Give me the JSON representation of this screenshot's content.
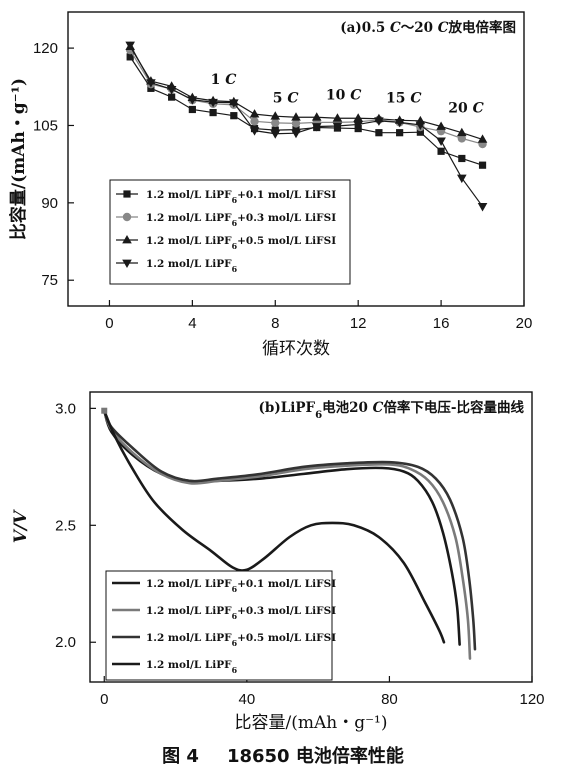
{
  "caption": {
    "figure_no": "图 4",
    "text": "18650 电池倍率性能"
  },
  "chart_data": [
    {
      "type": "line",
      "title": "(a)0.5 C～20 C放电倍率图",
      "xlabel": "循环次数",
      "ylabel": "比容量/(mAh・g⁻¹)",
      "xlim": [
        -2,
        20
      ],
      "ylim": [
        70,
        127
      ],
      "xticks": [
        0,
        4,
        8,
        12,
        16,
        20
      ],
      "yticks": [
        75,
        90,
        105,
        120
      ],
      "grid": false,
      "legend_placement": "lower-left",
      "annotations": [
        {
          "text": "1 C",
          "x": 5.5,
          "y": 113
        },
        {
          "text": "5 C",
          "x": 8.5,
          "y": 109.5
        },
        {
          "text": "10 C",
          "x": 11.3,
          "y": 110
        },
        {
          "text": "15 C",
          "x": 14.2,
          "y": 109.5
        },
        {
          "text": "20 C",
          "x": 17.2,
          "y": 107.5
        }
      ],
      "x": [
        1,
        2,
        3,
        4,
        5,
        6,
        7,
        8,
        9,
        10,
        11,
        12,
        13,
        14,
        15,
        16,
        17,
        18
      ],
      "series": [
        {
          "name": "1.2 mol/L LiPF₆+0.1 mol/L LiFSI",
          "marker": "square",
          "color": "#1a1a1a",
          "values": [
            118.3,
            112.2,
            110.5,
            108.1,
            107.5,
            106.9,
            104.4,
            104.1,
            104.2,
            104.6,
            104.5,
            104.4,
            103.6,
            103.6,
            103.7,
            100.0,
            98.6,
            97.3
          ]
        },
        {
          "name": "1.2 mol/L LiPF₆+0.3 mol/L LiFSI",
          "marker": "circle",
          "color": "#888888",
          "values": [
            119.6,
            113.0,
            112.1,
            109.9,
            109.2,
            109.0,
            105.8,
            105.5,
            105.4,
            105.6,
            105.6,
            105.7,
            106.1,
            105.6,
            104.7,
            103.9,
            102.5,
            101.4
          ]
        },
        {
          "name": "1.2 mol/L LiPF₆+0.5 mol/L LiFSI",
          "marker": "triangle-up",
          "color": "#1a1a1a",
          "values": [
            120.3,
            113.6,
            112.6,
            110.4,
            109.8,
            109.6,
            107.2,
            106.8,
            106.6,
            106.6,
            106.4,
            106.4,
            106.3,
            106.0,
            105.9,
            104.8,
            103.6,
            102.3
          ]
        },
        {
          "name": "1.2 mol/L LiPF₆",
          "marker": "triangle-down",
          "color": "#1a1a1a",
          "values": [
            120.6,
            113.3,
            112.0,
            110.0,
            109.5,
            109.4,
            104.0,
            103.4,
            103.5,
            104.8,
            104.9,
            105.2,
            105.9,
            105.6,
            105.1,
            102.0,
            94.8,
            89.3
          ]
        }
      ]
    },
    {
      "type": "line",
      "title": "(b)LiPF₆电池20 C倍率下电压-比容量曲线",
      "xlabel": "比容量/(mAh・g⁻¹)",
      "ylabel": "V/V",
      "xlim": [
        -4,
        120
      ],
      "ylim": [
        1.83,
        3.07
      ],
      "xticks": [
        0,
        40,
        80,
        120
      ],
      "yticks": [
        2.0,
        2.5,
        3.0
      ],
      "grid": false,
      "legend_placement": "lower-left",
      "series": [
        {
          "name": "1.2 mol/L LiPF₆+0.1 mol/L LiFSI",
          "color": "#1a1a1a",
          "points": [
            [
              0,
              2.99
            ],
            [
              2,
              2.9
            ],
            [
              8,
              2.8
            ],
            [
              16,
              2.72
            ],
            [
              24,
              2.69
            ],
            [
              32,
              2.69
            ],
            [
              44,
              2.7
            ],
            [
              56,
              2.72
            ],
            [
              68,
              2.74
            ],
            [
              78,
              2.745
            ],
            [
              84,
              2.73
            ],
            [
              88,
              2.69
            ],
            [
              92,
              2.6
            ],
            [
              95,
              2.47
            ],
            [
              97.5,
              2.3
            ],
            [
              99,
              2.15
            ],
            [
              99.7,
              1.99
            ]
          ]
        },
        {
          "name": "1.2 mol/L LiPF₆+0.3 mol/L LiFSI",
          "color": "#7a7a7a",
          "points": [
            [
              0,
              2.99
            ],
            [
              2,
              2.91
            ],
            [
              8,
              2.81
            ],
            [
              16,
              2.72
            ],
            [
              24,
              2.68
            ],
            [
              32,
              2.69
            ],
            [
              44,
              2.71
            ],
            [
              56,
              2.74
            ],
            [
              68,
              2.755
            ],
            [
              80,
              2.76
            ],
            [
              86,
              2.74
            ],
            [
              91,
              2.69
            ],
            [
              95,
              2.6
            ],
            [
              98.5,
              2.45
            ],
            [
              100.5,
              2.28
            ],
            [
              102,
              2.1
            ],
            [
              102.6,
              1.93
            ]
          ]
        },
        {
          "name": "1.2 mol/L LiPF₆+0.5 mol/L LiFSI",
          "color": "#333333",
          "points": [
            [
              0,
              2.99
            ],
            [
              2,
              2.92
            ],
            [
              8,
              2.83
            ],
            [
              16,
              2.73
            ],
            [
              24,
              2.69
            ],
            [
              32,
              2.7
            ],
            [
              44,
              2.72
            ],
            [
              56,
              2.75
            ],
            [
              68,
              2.765
            ],
            [
              80,
              2.77
            ],
            [
              88,
              2.75
            ],
            [
              93,
              2.7
            ],
            [
              97,
              2.61
            ],
            [
              100.5,
              2.45
            ],
            [
              102.3,
              2.28
            ],
            [
              103.5,
              2.1
            ],
            [
              104,
              1.97
            ]
          ]
        },
        {
          "name": "1.2 mol/L LiPF₆",
          "color": "#1a1a1a",
          "points": [
            [
              0,
              2.99
            ],
            [
              3,
              2.88
            ],
            [
              8,
              2.74
            ],
            [
              14,
              2.6
            ],
            [
              22,
              2.48
            ],
            [
              30,
              2.39
            ],
            [
              36,
              2.32
            ],
            [
              40,
              2.31
            ],
            [
              45,
              2.36
            ],
            [
              52,
              2.45
            ],
            [
              58,
              2.5
            ],
            [
              64,
              2.51
            ],
            [
              70,
              2.5
            ],
            [
              77,
              2.45
            ],
            [
              84,
              2.34
            ],
            [
              90,
              2.17
            ],
            [
              94,
              2.05
            ],
            [
              95.3,
              2.0
            ]
          ]
        }
      ]
    }
  ]
}
